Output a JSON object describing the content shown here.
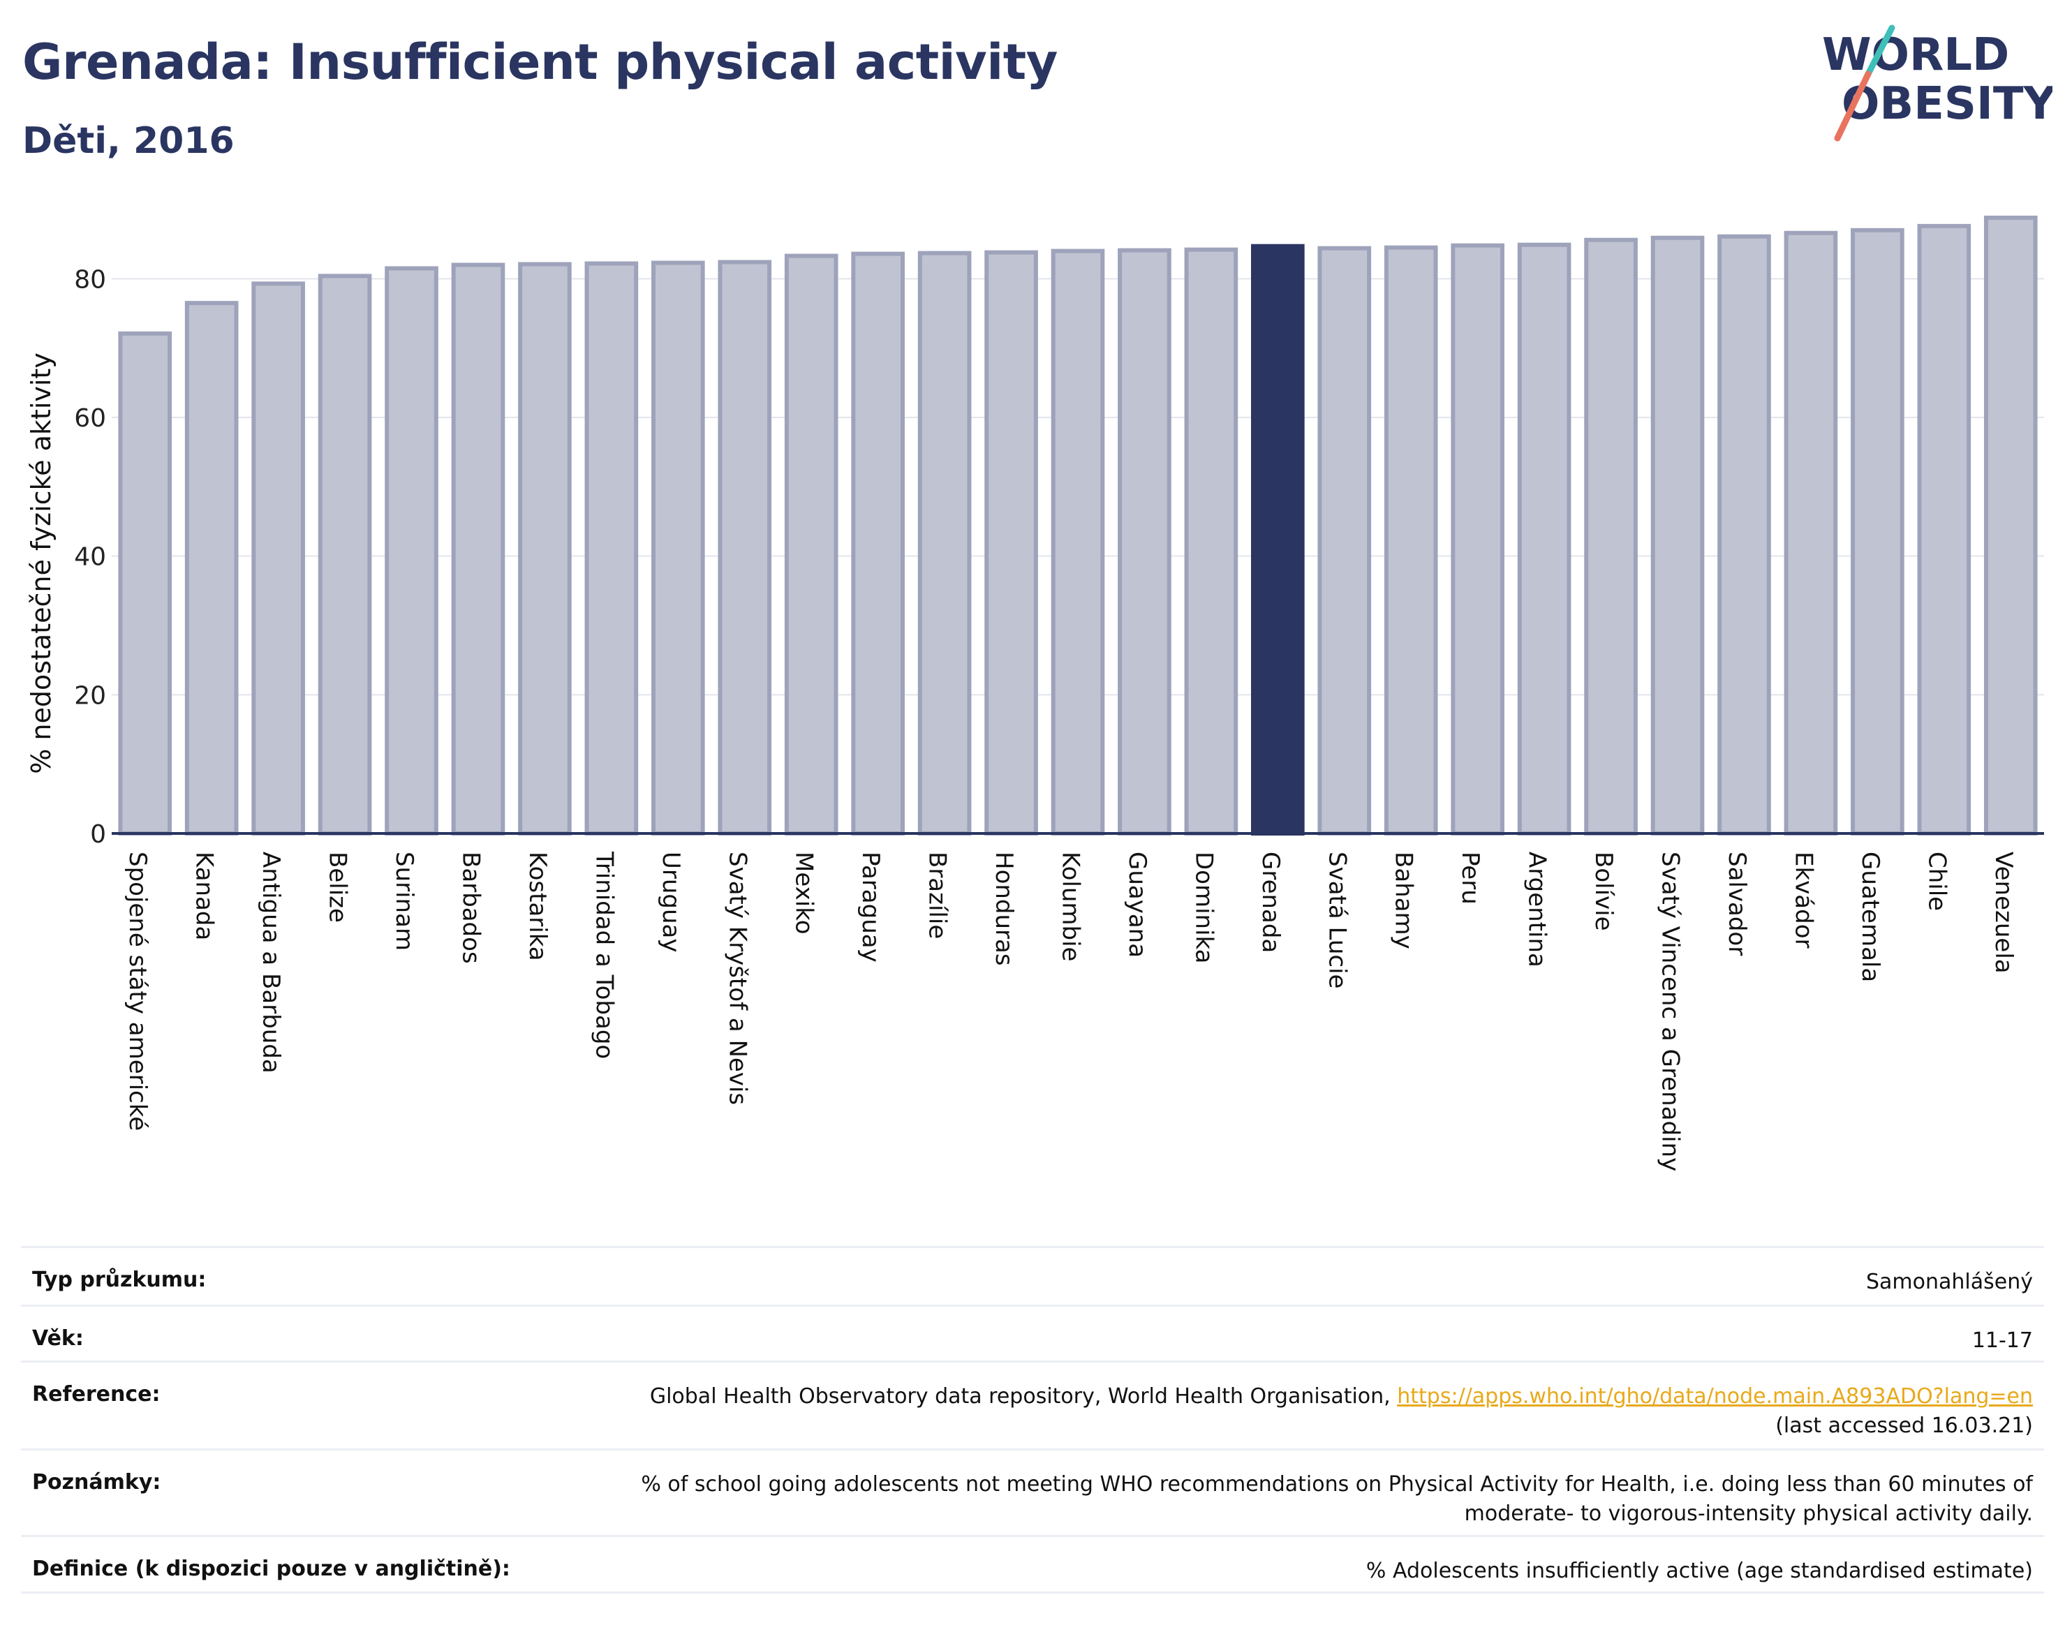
{
  "header": {
    "title": "Grenada: Insufficient physical activity",
    "subtitle": "Děti, 2016"
  },
  "logo": {
    "line1": "WORLD",
    "line2": "OBESITY"
  },
  "chart_data": {
    "type": "bar",
    "ylabel": "% nedostatečné fyzické aktivity",
    "ylim": [
      0,
      90
    ],
    "yticks": [
      0,
      20,
      40,
      60,
      80
    ],
    "grid": true,
    "highlight": "Grenada",
    "categories": [
      "Spojené státy americké",
      "Kanada",
      "Antigua a Barbuda",
      "Belize",
      "Surinam",
      "Barbados",
      "Kostarika",
      "Trinidad a Tobago",
      "Uruguay",
      "Svatý Kryštof a Nevis",
      "Mexiko",
      "Paraguay",
      "Brazílie",
      "Honduras",
      "Kolumbie",
      "Guayana",
      "Dominika",
      "Grenada",
      "Svatá Lucie",
      "Bahamy",
      "Peru",
      "Argentina",
      "Bolívie",
      "Svatý Vincenc a Grenadiny",
      "Salvador",
      "Ekvádor",
      "Guatemala",
      "Chile",
      "Venezuela"
    ],
    "values": [
      72.1,
      76.5,
      79.3,
      80.4,
      81.5,
      82.0,
      82.1,
      82.2,
      82.3,
      82.4,
      83.3,
      83.6,
      83.7,
      83.8,
      84.0,
      84.1,
      84.2,
      84.7,
      84.4,
      84.5,
      84.8,
      84.9,
      85.6,
      85.9,
      86.1,
      86.6,
      87.0,
      87.6,
      88.8
    ],
    "colors": {
      "bar": "#c0c3d1",
      "bar_border": "#9ea3bb",
      "highlight": "#2a3561",
      "axis": "#2a3561",
      "grid": "#e4e5ec"
    }
  },
  "info": {
    "survey_label": "Typ průzkumu:",
    "survey_value": "Samonahlášený",
    "age_label": "Věk:",
    "age_value": "11-17",
    "reference_label": "Reference:",
    "reference_text": "Global Health Observatory data repository, World Health Organisation,",
    "reference_link": "https://apps.who.int/gho/data/node.main.A893ADO?lang=en",
    "reference_accessed": "(last accessed 16.03.21)",
    "notes_label": "Poznámky:",
    "notes_line1": "% of school going adolescents not meeting WHO recommendations on Physical Activity for Health, i.e. doing less than 60 minutes of",
    "notes_line2": "moderate- to vigorous-intensity physical activity daily.",
    "definition_label": "Definice (k dispozici pouze v angličtině):",
    "definition_value": "% Adolescents insufficiently active (age standardised estimate)"
  }
}
